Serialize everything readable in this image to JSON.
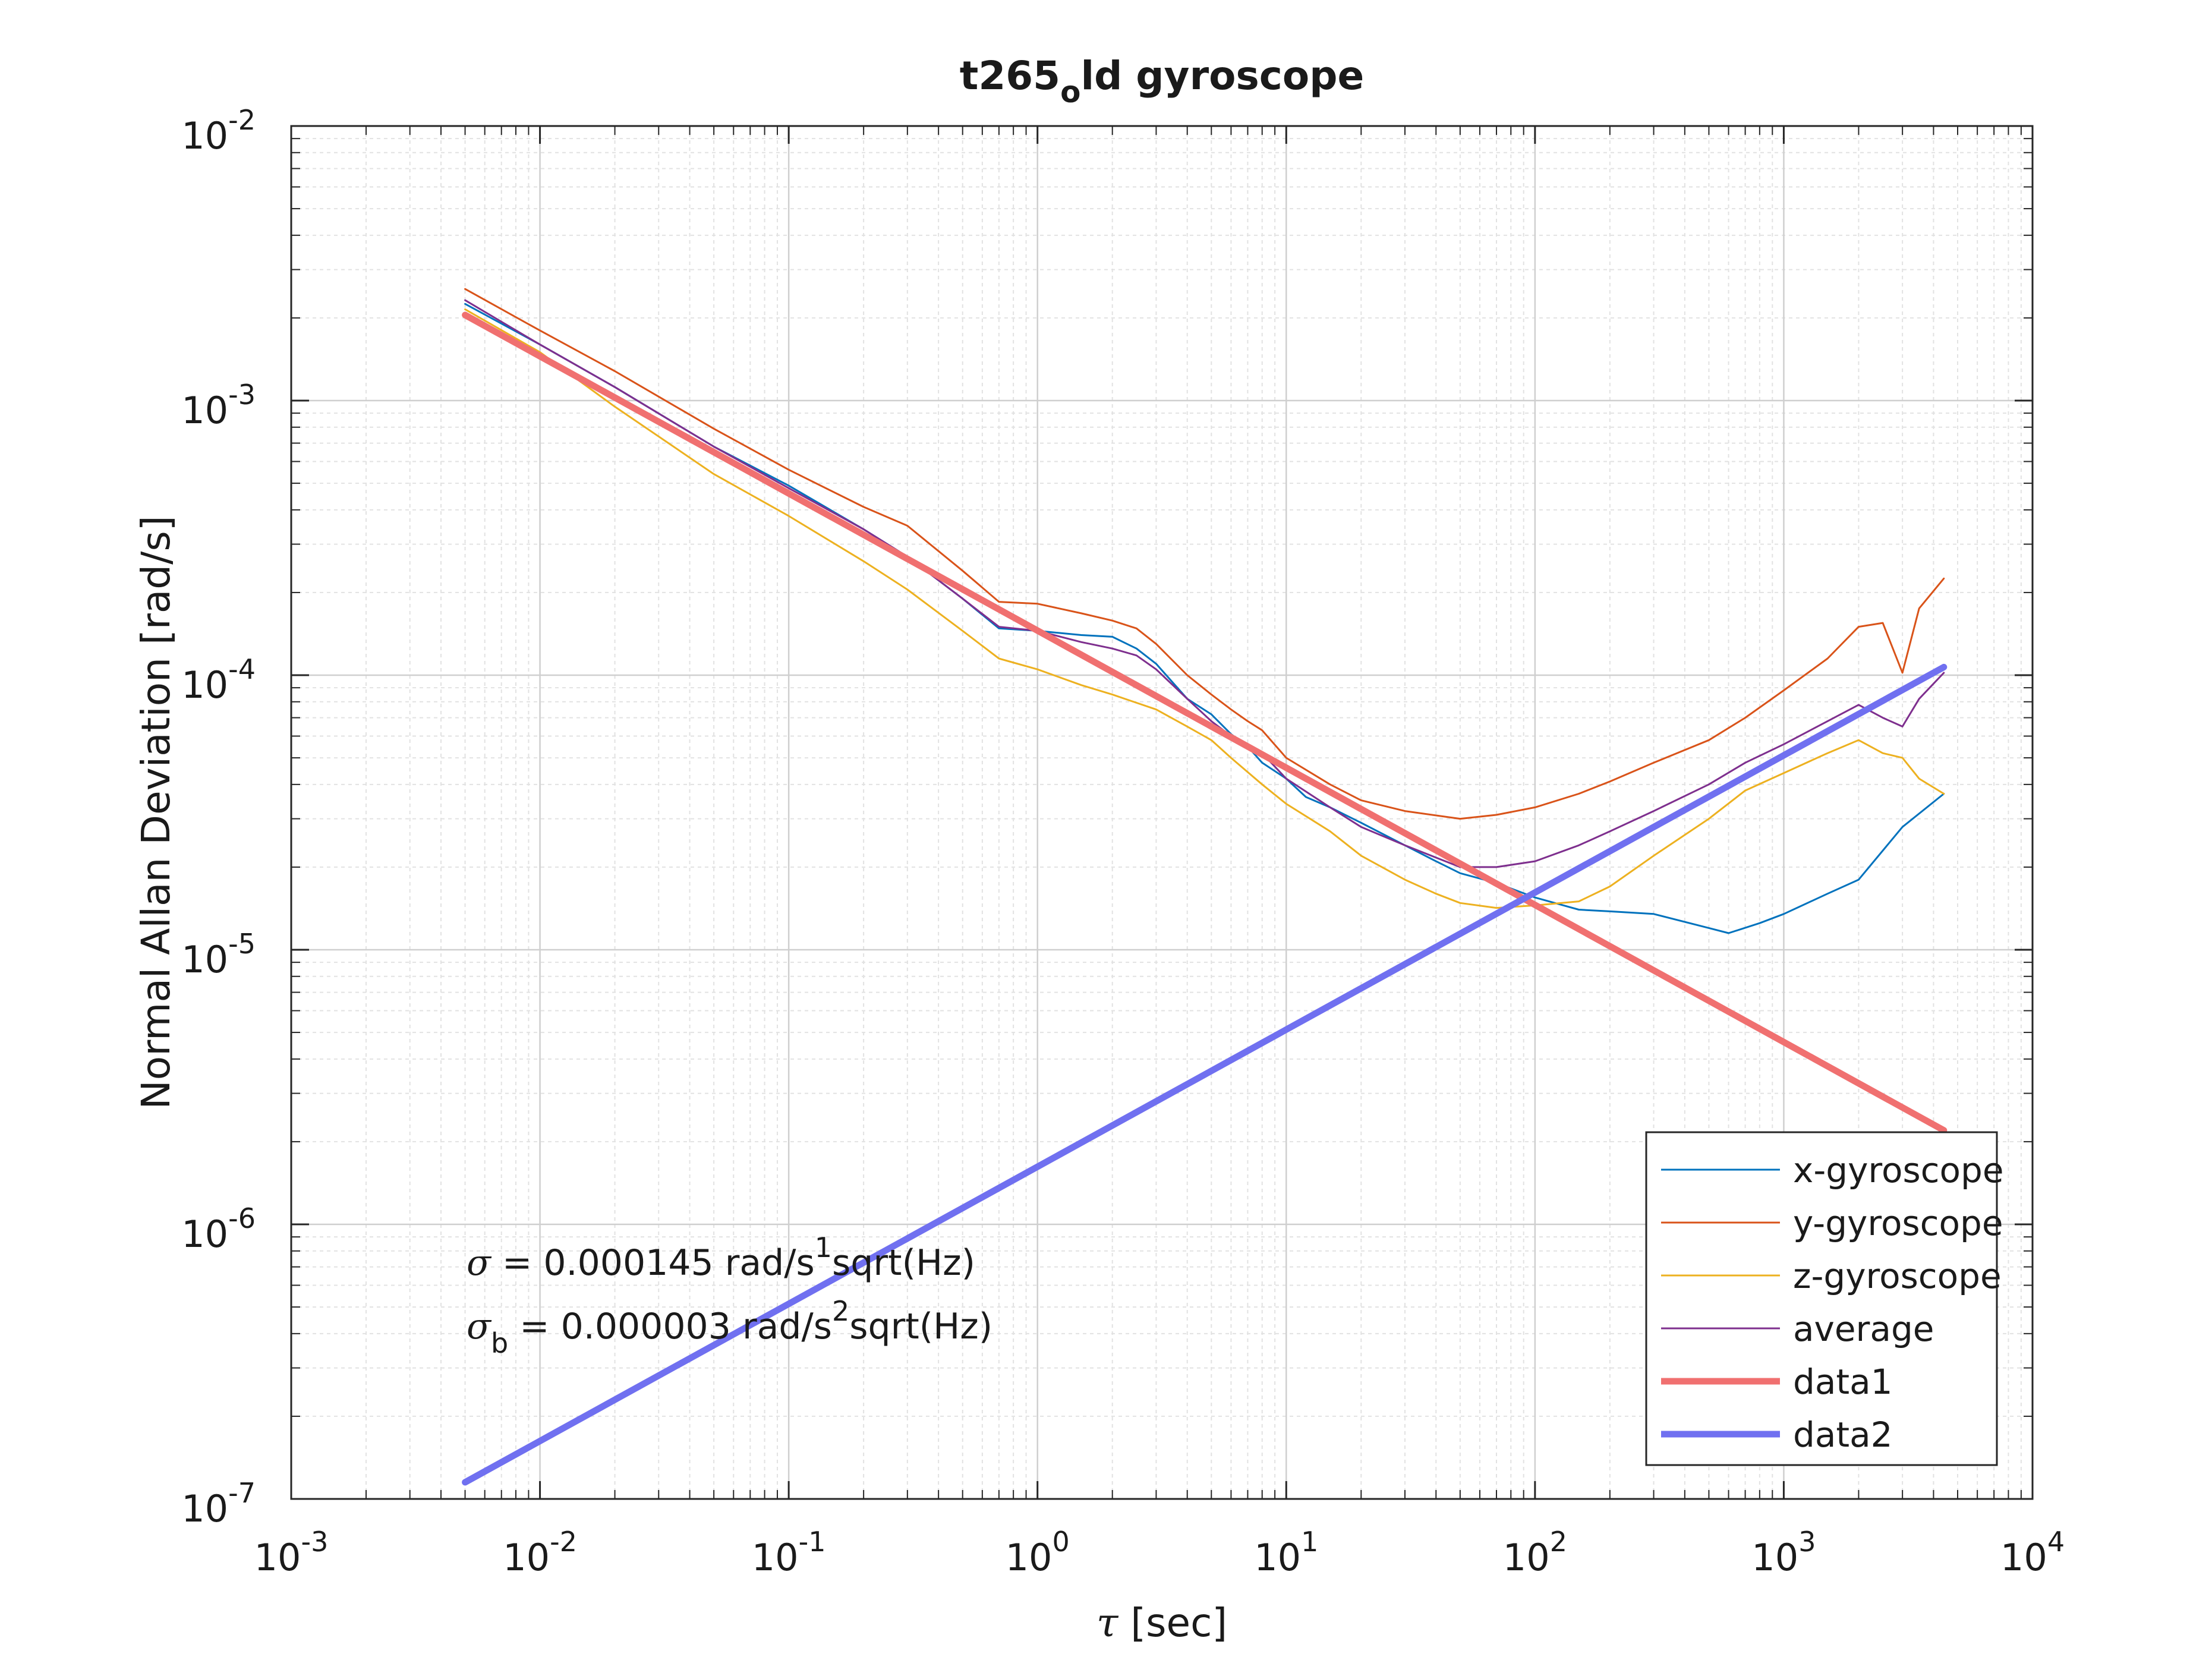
{
  "chart_data": {
    "type": "line",
    "title": "t265",
    "title_subscript": "o",
    "title_rest": "ld gyroscope",
    "xlabel_symbol": "τ",
    "xlabel_rest": " [sec]",
    "ylabel": "Normal Allan Deviation [rad/s]",
    "x_scale": "log",
    "y_scale": "log",
    "xlim": [
      0.001,
      10000
    ],
    "ylim": [
      1e-07,
      0.01
    ],
    "grid": true,
    "legend_placement": "bottom-right",
    "x_ticks": [
      {
        "base": "10",
        "exp": "-3"
      },
      {
        "base": "10",
        "exp": "-2"
      },
      {
        "base": "10",
        "exp": "-1"
      },
      {
        "base": "10",
        "exp": "0"
      },
      {
        "base": "10",
        "exp": "1"
      },
      {
        "base": "10",
        "exp": "2"
      },
      {
        "base": "10",
        "exp": "3"
      },
      {
        "base": "10",
        "exp": "4"
      }
    ],
    "y_ticks": [
      {
        "base": "10",
        "exp": "-7"
      },
      {
        "base": "10",
        "exp": "-6"
      },
      {
        "base": "10",
        "exp": "-5"
      },
      {
        "base": "10",
        "exp": "-4"
      },
      {
        "base": "10",
        "exp": "-3"
      },
      {
        "base": "10",
        "exp": "-2"
      }
    ],
    "annotations": [
      {
        "sym": "σ",
        "sub": "",
        "text1": " = 0.000145 rad/s",
        "sup": "1",
        "text2": "sqrt(Hz)"
      },
      {
        "sym": "σ",
        "sub": "b",
        "text1": " = 0.000003 rad/s",
        "sup": "2",
        "text2": "sqrt(Hz)"
      }
    ],
    "series": [
      {
        "name": "x-gyroscope",
        "color": "#0072BD",
        "width": 1,
        "x": [
          0.005,
          0.01,
          0.02,
          0.05,
          0.1,
          0.2,
          0.3,
          0.5,
          0.7,
          1,
          1.5,
          2,
          2.5,
          3,
          4,
          5,
          6,
          7,
          8,
          10,
          12,
          15,
          20,
          30,
          40,
          50,
          70,
          100,
          150,
          200,
          300,
          500,
          600,
          800,
          1000,
          1500,
          2000,
          3000,
          4400
        ],
        "y": [
          0.00225,
          0.0016,
          0.00112,
          0.00068,
          0.00049,
          0.00034,
          0.00027,
          0.00019,
          0.000148,
          0.000145,
          0.00014,
          0.000138,
          0.000125,
          0.00011,
          8.2e-05,
          7.2e-05,
          6.1e-05,
          5.5e-05,
          4.8e-05,
          4.2e-05,
          3.6e-05,
          3.3e-05,
          2.9e-05,
          2.4e-05,
          2.1e-05,
          1.9e-05,
          1.75e-05,
          1.55e-05,
          1.4e-05,
          1.38e-05,
          1.35e-05,
          1.2e-05,
          1.15e-05,
          1.25e-05,
          1.35e-05,
          1.6e-05,
          1.8e-05,
          2.8e-05,
          3.7e-05
        ]
      },
      {
        "name": "y-gyroscope",
        "color": "#D95319",
        "width": 1,
        "x": [
          0.005,
          0.01,
          0.02,
          0.05,
          0.1,
          0.2,
          0.3,
          0.5,
          0.7,
          1,
          1.5,
          2,
          2.5,
          3,
          4,
          5,
          6,
          7,
          8,
          10,
          15,
          20,
          30,
          50,
          70,
          100,
          150,
          200,
          300,
          500,
          700,
          1000,
          1500,
          2000,
          2500,
          3000,
          3500,
          4400
        ],
        "y": [
          0.00255,
          0.0018,
          0.00128,
          0.00079,
          0.00056,
          0.00041,
          0.00035,
          0.00024,
          0.000185,
          0.000182,
          0.000168,
          0.000158,
          0.000148,
          0.00013,
          0.0001,
          8.5e-05,
          7.5e-05,
          6.8e-05,
          6.3e-05,
          5e-05,
          4e-05,
          3.5e-05,
          3.2e-05,
          3e-05,
          3.1e-05,
          3.3e-05,
          3.7e-05,
          4.1e-05,
          4.8e-05,
          5.8e-05,
          7e-05,
          8.8e-05,
          0.000115,
          0.00015,
          0.000155,
          0.000102,
          0.000175,
          0.000225
        ]
      },
      {
        "name": "z-gyroscope",
        "color": "#EDB120",
        "width": 1,
        "x": [
          0.005,
          0.01,
          0.02,
          0.05,
          0.1,
          0.2,
          0.3,
          0.5,
          0.7,
          1,
          1.5,
          2,
          3,
          4,
          5,
          6,
          8,
          10,
          15,
          20,
          30,
          40,
          50,
          70,
          100,
          150,
          200,
          300,
          500,
          700,
          1000,
          1500,
          2000,
          2500,
          3000,
          3500,
          4400
        ],
        "y": [
          0.00215,
          0.0015,
          0.00095,
          0.00054,
          0.00038,
          0.00026,
          0.000205,
          0.000145,
          0.000115,
          0.000105,
          9.2e-05,
          8.5e-05,
          7.5e-05,
          6.5e-05,
          5.8e-05,
          5e-05,
          4e-05,
          3.4e-05,
          2.7e-05,
          2.2e-05,
          1.8e-05,
          1.6e-05,
          1.48e-05,
          1.42e-05,
          1.45e-05,
          1.5e-05,
          1.7e-05,
          2.2e-05,
          3e-05,
          3.8e-05,
          4.4e-05,
          5.2e-05,
          5.8e-05,
          5.2e-05,
          5e-05,
          4.2e-05,
          3.7e-05
        ]
      },
      {
        "name": "average",
        "color": "#7E2F8E",
        "width": 1,
        "x": [
          0.005,
          0.01,
          0.02,
          0.05,
          0.1,
          0.2,
          0.3,
          0.5,
          0.7,
          1,
          1.5,
          2,
          2.5,
          3,
          4,
          5,
          6,
          8,
          10,
          15,
          20,
          30,
          50,
          70,
          100,
          150,
          200,
          300,
          500,
          700,
          1000,
          1500,
          2000,
          2500,
          3000,
          3500,
          4400
        ],
        "y": [
          0.00232,
          0.0016,
          0.00112,
          0.00068,
          0.00048,
          0.00034,
          0.00027,
          0.00019,
          0.00015,
          0.000145,
          0.000132,
          0.000125,
          0.000118,
          0.000105,
          8.2e-05,
          6.8e-05,
          6e-05,
          5.2e-05,
          4.2e-05,
          3.3e-05,
          2.8e-05,
          2.4e-05,
          2e-05,
          2e-05,
          2.1e-05,
          2.4e-05,
          2.7e-05,
          3.2e-05,
          4e-05,
          4.8e-05,
          5.6e-05,
          6.8e-05,
          7.8e-05,
          7e-05,
          6.5e-05,
          8.2e-05,
          0.000102
        ]
      },
      {
        "name": "data1",
        "color": "#F07070",
        "width": 8,
        "x": [
          0.005,
          4400
        ],
        "y": [
          0.00205,
          2.2e-06
        ]
      },
      {
        "name": "data2",
        "color": "#7070F0",
        "width": 8,
        "x": [
          0.005,
          4400
        ],
        "y": [
          1.15e-07,
          0.000107
        ]
      }
    ]
  }
}
